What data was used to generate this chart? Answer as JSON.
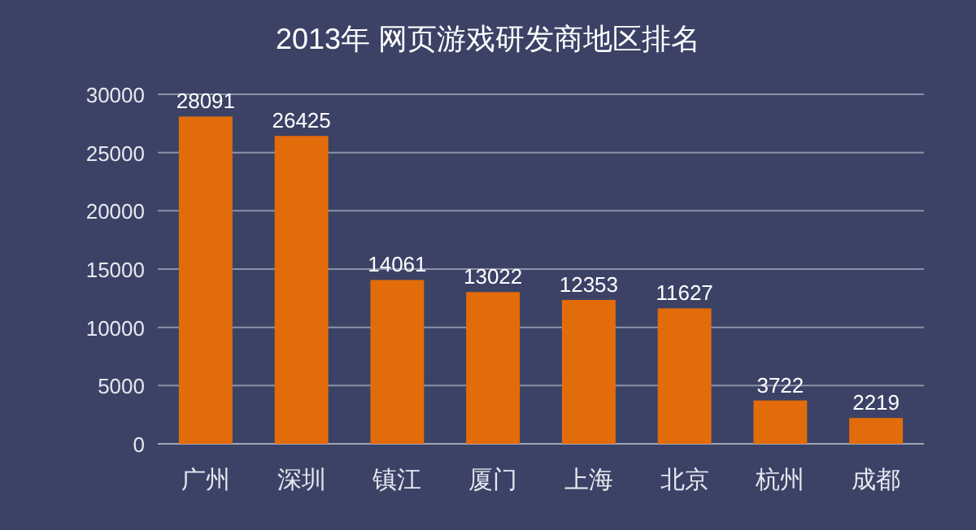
{
  "chart_data": {
    "type": "bar",
    "title": "2013年 网页游戏研发商地区排名",
    "categories": [
      "广州",
      "深圳",
      "镇江",
      "厦门",
      "上海",
      "北京",
      "杭州",
      "成都"
    ],
    "values": [
      28091,
      26425,
      14061,
      13022,
      12353,
      11627,
      3722,
      2219
    ],
    "color": "#e36c0a",
    "ylim": [
      0,
      30000
    ],
    "yticks": [
      0,
      5000,
      10000,
      15000,
      20000,
      25000,
      30000
    ],
    "grid": "y",
    "data_labels": true
  }
}
